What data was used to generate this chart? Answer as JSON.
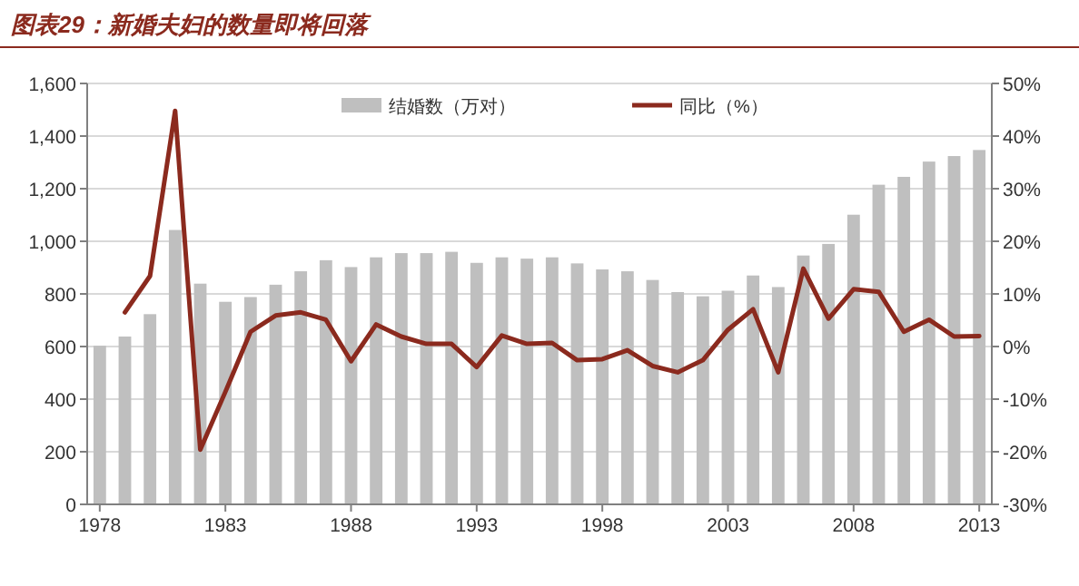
{
  "chart_data": {
    "type": "bar",
    "title": "图表29：新婚夫妇的数量即将回落",
    "categories": [
      "1978",
      null,
      null,
      null,
      null,
      "1983",
      null,
      null,
      null,
      null,
      "1988",
      null,
      null,
      null,
      null,
      "1993",
      null,
      null,
      null,
      null,
      "1998",
      null,
      null,
      null,
      null,
      "2003",
      null,
      null,
      null,
      null,
      "2008",
      null,
      null,
      null,
      null,
      "2013"
    ],
    "series": [
      {
        "name": "结婚数（万对）",
        "color": "#bfbfbf",
        "values": [
          603,
          638,
          723,
          1043,
          839,
          770,
          788,
          835,
          886,
          928,
          902,
          939,
          955,
          955,
          960,
          918,
          939,
          934,
          939,
          916,
          893,
          886,
          853,
          807,
          791,
          812,
          870,
          826,
          946,
          990,
          1101,
          1215,
          1245,
          1303,
          1324,
          1347
        ]
      },
      {
        "name": "同比（%）",
        "type": "line",
        "axis": "y2",
        "color": "#8b2a1e",
        "values": [
          null,
          6.5,
          13.4,
          44.8,
          -19.6,
          -8.6,
          2.8,
          5.9,
          6.5,
          5.1,
          -2.8,
          4.2,
          1.9,
          0.5,
          0.5,
          -3.9,
          2.1,
          0.5,
          0.7,
          -2.6,
          -2.4,
          -0.7,
          -3.7,
          -4.9,
          -2.6,
          3.2,
          7.1,
          -4.9,
          14.8,
          5.3,
          10.9,
          10.4,
          2.8,
          5.1,
          1.9,
          2.0
        ]
      }
    ],
    "ylim": [
      0,
      1600
    ],
    "yticks": [
      0,
      200,
      400,
      600,
      800,
      {
        "value": 1000,
        "label": "1,000"
      },
      {
        "value": 1200,
        "label": "1,200"
      },
      {
        "value": 1400,
        "label": "1,400"
      },
      {
        "value": 1600,
        "label": "1,600"
      }
    ],
    "y2lim": [
      -30,
      50
    ],
    "y2ticks": [
      {
        "value": -30,
        "label": "-30%"
      },
      {
        "value": -20,
        "label": "-20%"
      },
      {
        "value": -10,
        "label": "-10%"
      },
      {
        "value": 0,
        "label": "0%"
      },
      {
        "value": 10,
        "label": "10%"
      },
      {
        "value": 20,
        "label": "20%"
      },
      {
        "value": 30,
        "label": "30%"
      },
      {
        "value": 40,
        "label": "40%"
      },
      {
        "value": 50,
        "label": "50%"
      }
    ],
    "grid": "y",
    "legend": "top",
    "marker": "none"
  }
}
